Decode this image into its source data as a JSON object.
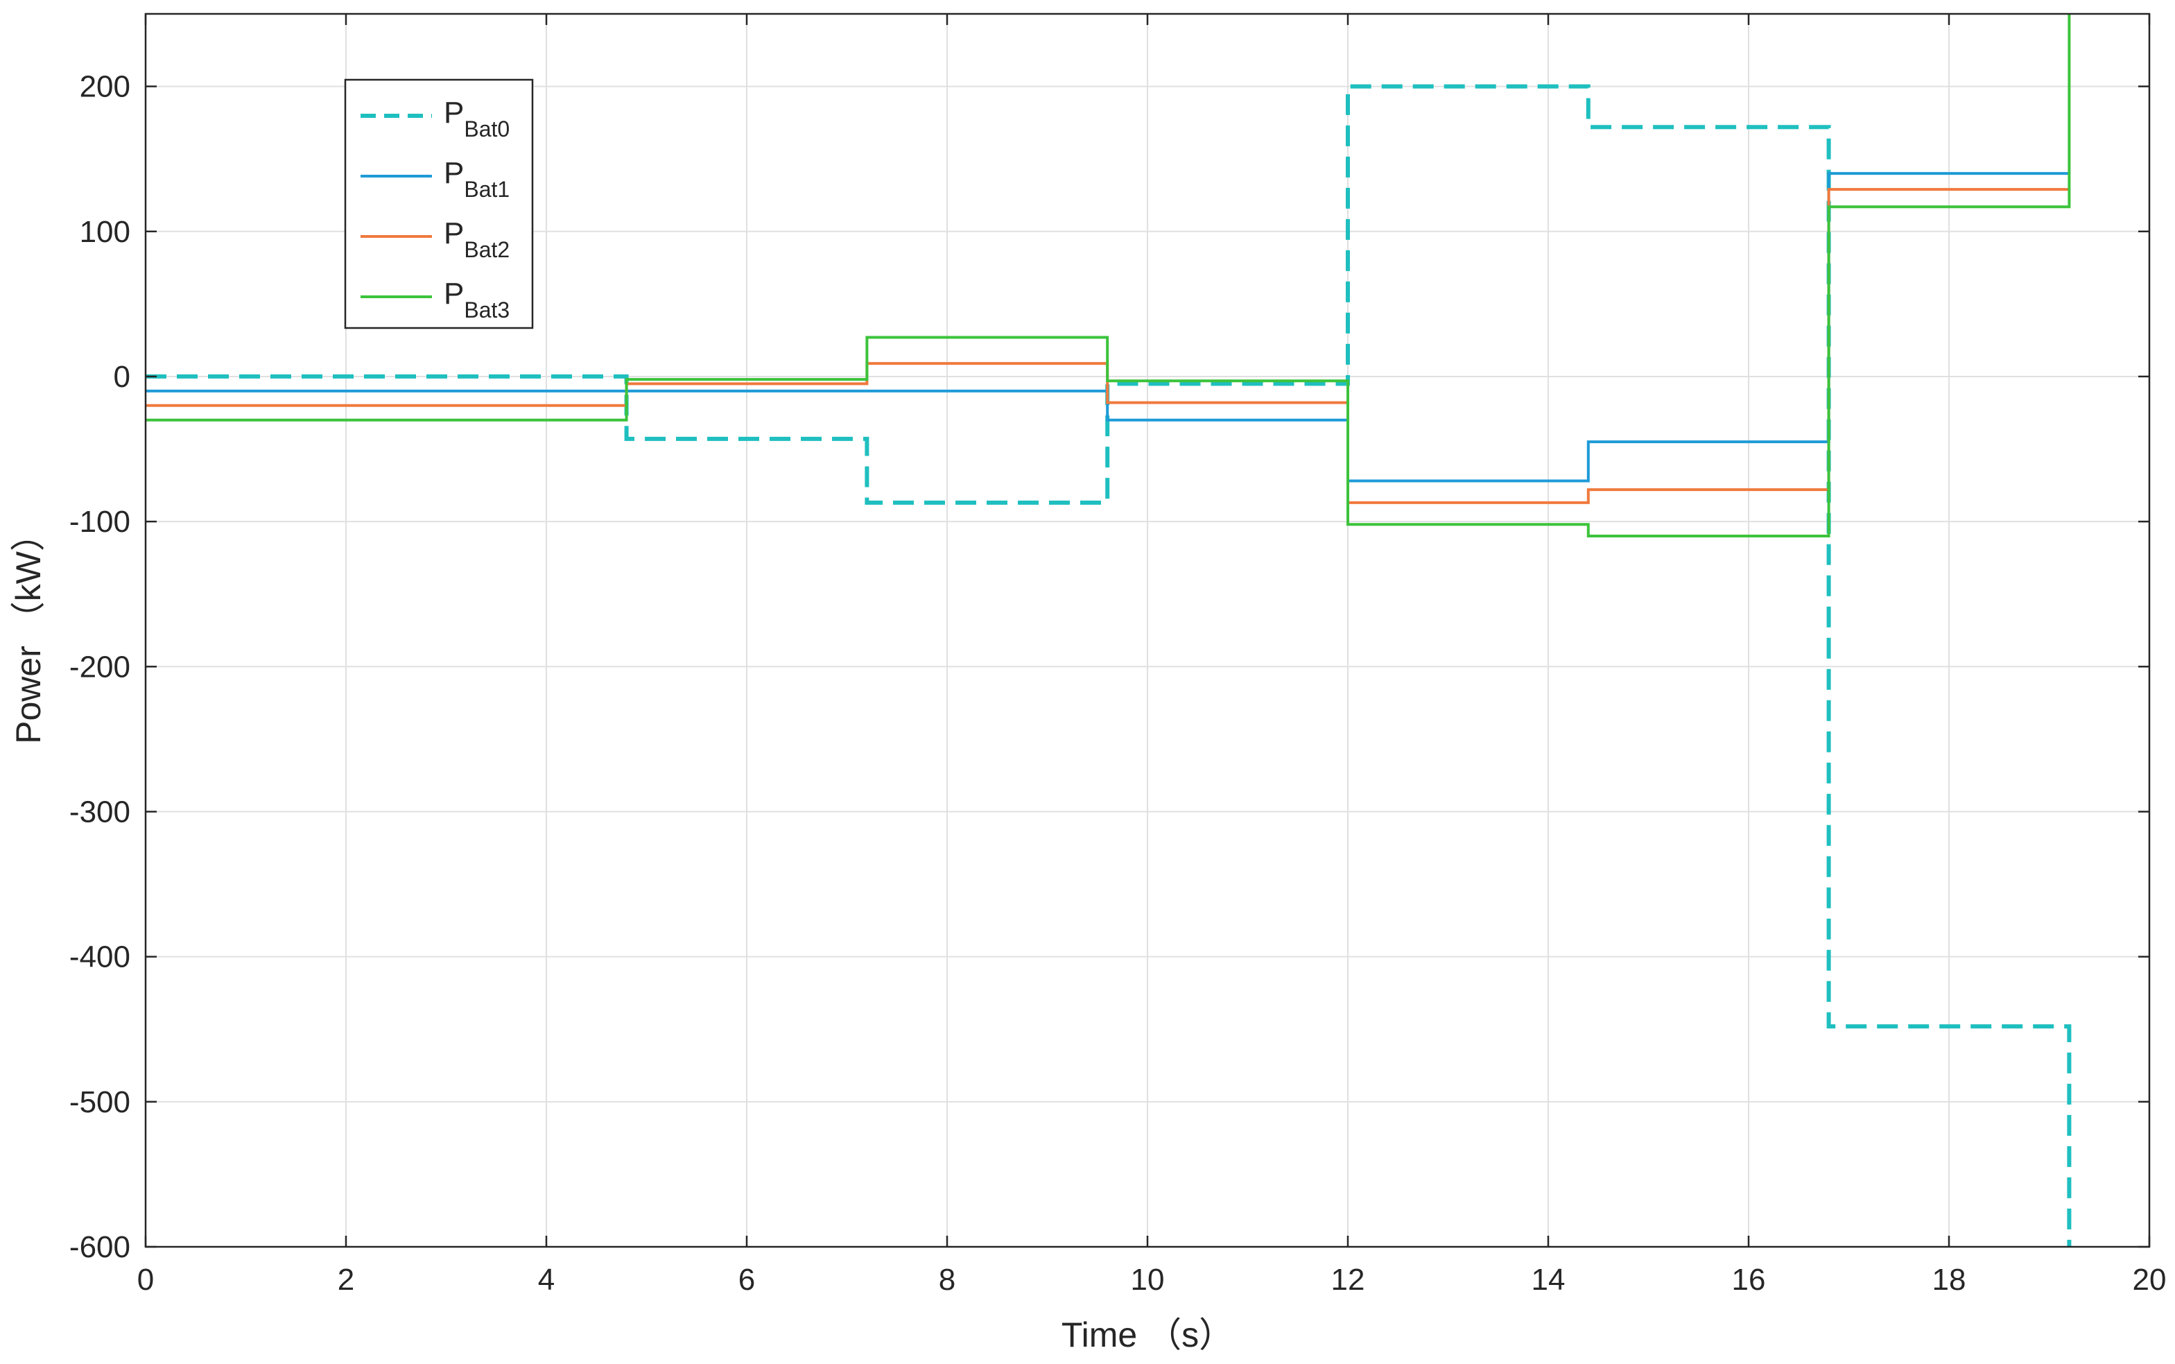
{
  "chart_data": {
    "type": "line",
    "step": true,
    "xlabel": "Time （s）",
    "ylabel": "Power （kW）",
    "xlim": [
      0,
      20
    ],
    "ylim": [
      -600,
      250
    ],
    "xticks": [
      0,
      2,
      4,
      6,
      8,
      10,
      12,
      14,
      16,
      18,
      20
    ],
    "yticks": [
      -600,
      -500,
      -400,
      -300,
      -200,
      -100,
      0,
      100,
      200
    ],
    "grid": true,
    "legend_position": "top-left",
    "series": [
      {
        "name": "P",
        "subscript": "Bat0",
        "color": "#1fbfbf",
        "dashed": true,
        "x": [
          0,
          4.8,
          4.8,
          7.2,
          7.2,
          9.6,
          9.6,
          12,
          12,
          14.4,
          14.4,
          16.8,
          16.8,
          19.2,
          19.2
        ],
        "y": [
          0,
          0,
          -43,
          -43,
          -87,
          -87,
          -5,
          -5,
          200,
          200,
          172,
          172,
          -448,
          -448,
          -600
        ]
      },
      {
        "name": "P",
        "subscript": "Bat1",
        "color": "#1e9bd7",
        "dashed": false,
        "x": [
          0,
          4.8,
          4.8,
          9.6,
          9.6,
          12,
          12,
          14.4,
          14.4,
          16.8,
          16.8,
          19.2
        ],
        "y": [
          -10,
          -10,
          -10,
          -10,
          -30,
          -30,
          -72,
          -72,
          -45,
          -45,
          140,
          140
        ]
      },
      {
        "name": "P",
        "subscript": "Bat2",
        "color": "#f07a3e",
        "dashed": false,
        "x": [
          0,
          4.8,
          4.8,
          7.2,
          7.2,
          9.6,
          9.6,
          12,
          12,
          14.4,
          14.4,
          16.8,
          16.8,
          19.2
        ],
        "y": [
          -20,
          -20,
          -5,
          -5,
          9,
          9,
          -18,
          -18,
          -87,
          -87,
          -78,
          -78,
          129,
          129
        ]
      },
      {
        "name": "P",
        "subscript": "Bat3",
        "color": "#3cc33c",
        "dashed": false,
        "x": [
          0,
          4.8,
          4.8,
          7.2,
          7.2,
          9.6,
          9.6,
          12,
          12,
          14.4,
          14.4,
          16.8,
          16.8,
          19.2,
          19.2
        ],
        "y": [
          -30,
          -30,
          -2,
          -2,
          27,
          27,
          -3,
          -3,
          -102,
          -102,
          -110,
          -110,
          117,
          117,
          250
        ]
      }
    ]
  }
}
